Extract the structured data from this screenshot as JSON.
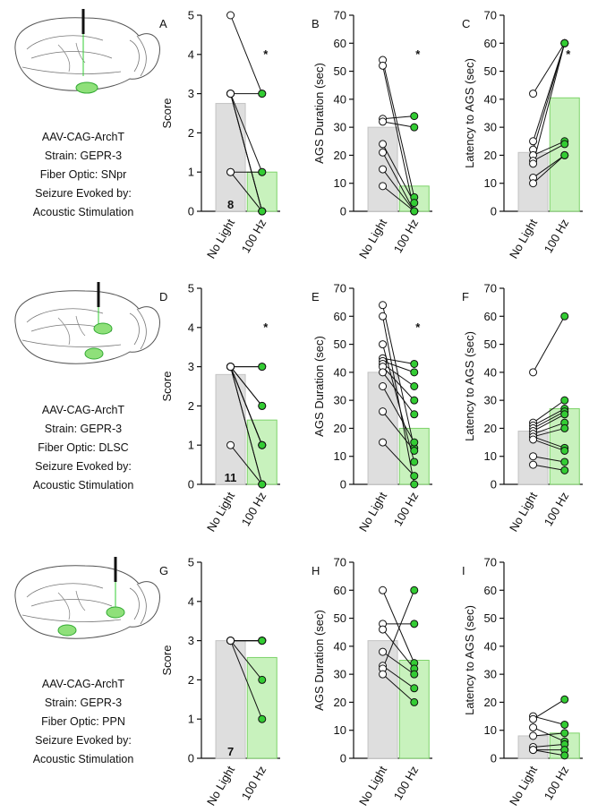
{
  "chart_data": [
    {
      "type": "paired_bar",
      "panel": "A",
      "ylabel": "Score",
      "categories": [
        "No Light",
        "100 Hz"
      ],
      "values": [
        2.75,
        1.0
      ],
      "n_label": "8",
      "annotation": "*",
      "ylim": [
        0,
        5
      ],
      "yticks": [
        0,
        1,
        2,
        3,
        4,
        5
      ],
      "colors": [
        "#dedede",
        "#c8f2bd"
      ],
      "point_colors": [
        "#ffffff",
        "#33cc33"
      ],
      "pairs": [
        [
          5,
          3
        ],
        [
          3,
          3
        ],
        [
          3,
          1
        ],
        [
          3,
          0
        ],
        [
          3,
          0
        ],
        [
          3,
          0
        ],
        [
          1,
          1
        ],
        [
          1,
          0
        ]
      ]
    },
    {
      "type": "paired_bar",
      "panel": "B",
      "ylabel": "AGS Duration (sec)",
      "categories": [
        "No Light",
        "100 Hz"
      ],
      "values": [
        30,
        9
      ],
      "annotation": "*",
      "ylim": [
        0,
        70
      ],
      "yticks": [
        0,
        10,
        20,
        30,
        40,
        50,
        60,
        70
      ],
      "colors": [
        "#dedede",
        "#c8f2bd"
      ],
      "point_colors": [
        "#ffffff",
        "#33cc33"
      ],
      "pairs": [
        [
          54,
          5
        ],
        [
          52,
          0
        ],
        [
          33,
          34
        ],
        [
          32,
          30
        ],
        [
          24,
          3
        ],
        [
          15,
          0
        ],
        [
          21,
          0
        ],
        [
          9,
          0
        ]
      ]
    },
    {
      "type": "paired_bar",
      "panel": "C",
      "ylabel": "Latency to AGS (sec)",
      "categories": [
        "No Light",
        "100 Hz"
      ],
      "values": [
        21,
        40.5
      ],
      "annotation": "*",
      "ylim": [
        0,
        70
      ],
      "yticks": [
        0,
        10,
        20,
        30,
        40,
        50,
        60,
        70
      ],
      "colors": [
        "#dedede",
        "#c8f2bd"
      ],
      "point_colors": [
        "#ffffff",
        "#33cc33"
      ],
      "pairs": [
        [
          42,
          60
        ],
        [
          25,
          60
        ],
        [
          22,
          60
        ],
        [
          20,
          25
        ],
        [
          18,
          24
        ],
        [
          17,
          60
        ],
        [
          12,
          20
        ],
        [
          10,
          20
        ]
      ]
    },
    {
      "type": "paired_bar",
      "panel": "D",
      "ylabel": "Score",
      "categories": [
        "No Light",
        "100 Hz"
      ],
      "values": [
        2.8,
        1.64
      ],
      "n_label": "11",
      "annotation": "*",
      "ylim": [
        0,
        5
      ],
      "yticks": [
        0,
        1,
        2,
        3,
        4,
        5
      ],
      "colors": [
        "#dedede",
        "#c8f2bd"
      ],
      "point_colors": [
        "#ffffff",
        "#33cc33"
      ],
      "pairs": [
        [
          3,
          3
        ],
        [
          3,
          3
        ],
        [
          3,
          2
        ],
        [
          3,
          2
        ],
        [
          3,
          1
        ],
        [
          3,
          1
        ],
        [
          3,
          1
        ],
        [
          3,
          1
        ],
        [
          3,
          0
        ],
        [
          3,
          0
        ],
        [
          1,
          0
        ]
      ]
    },
    {
      "type": "paired_bar",
      "panel": "E",
      "ylabel": "AGS Duration (sec)",
      "categories": [
        "No Light",
        "100 Hz"
      ],
      "values": [
        40,
        20
      ],
      "annotation": "*",
      "ylim": [
        0,
        70
      ],
      "yticks": [
        0,
        10,
        20,
        30,
        40,
        50,
        60,
        70
      ],
      "colors": [
        "#dedede",
        "#c8f2bd"
      ],
      "point_colors": [
        "#ffffff",
        "#33cc33"
      ],
      "pairs": [
        [
          64,
          13
        ],
        [
          60,
          0
        ],
        [
          50,
          8
        ],
        [
          45,
          43
        ],
        [
          44,
          40
        ],
        [
          43,
          35
        ],
        [
          42,
          30
        ],
        [
          40,
          25
        ],
        [
          35,
          15
        ],
        [
          26,
          12
        ],
        [
          15,
          3
        ]
      ]
    },
    {
      "type": "paired_bar",
      "panel": "F",
      "ylabel": "Latency to AGS (sec)",
      "categories": [
        "No Light",
        "100 Hz"
      ],
      "values": [
        19,
        27
      ],
      "ylim": [
        0,
        70
      ],
      "yticks": [
        0,
        10,
        20,
        30,
        40,
        50,
        60,
        70
      ],
      "colors": [
        "#dedede",
        "#c8f2bd"
      ],
      "point_colors": [
        "#ffffff",
        "#33cc33"
      ],
      "pairs": [
        [
          40,
          60
        ],
        [
          22,
          30
        ],
        [
          21,
          27
        ],
        [
          20,
          26
        ],
        [
          19,
          25
        ],
        [
          18,
          22
        ],
        [
          17,
          20
        ],
        [
          17,
          13
        ],
        [
          16,
          12
        ],
        [
          10,
          8
        ],
        [
          7,
          5
        ]
      ]
    },
    {
      "type": "paired_bar",
      "panel": "G",
      "ylabel": "Score",
      "categories": [
        "No Light",
        "100 Hz"
      ],
      "values": [
        3,
        2.57
      ],
      "n_label": "7",
      "ylim": [
        0,
        5
      ],
      "yticks": [
        0,
        1,
        2,
        3,
        4,
        5
      ],
      "colors": [
        "#dedede",
        "#c8f2bd"
      ],
      "point_colors": [
        "#ffffff",
        "#33cc33"
      ],
      "pairs": [
        [
          3,
          3
        ],
        [
          3,
          3
        ],
        [
          3,
          3
        ],
        [
          3,
          3
        ],
        [
          3,
          3
        ],
        [
          3,
          2
        ],
        [
          3,
          1
        ]
      ]
    },
    {
      "type": "paired_bar",
      "panel": "H",
      "ylabel": "AGS Duration (sec)",
      "categories": [
        "No Light",
        "100 Hz"
      ],
      "values": [
        42,
        35
      ],
      "ylim": [
        0,
        70
      ],
      "yticks": [
        0,
        10,
        20,
        30,
        40,
        50,
        60,
        70
      ],
      "colors": [
        "#dedede",
        "#c8f2bd"
      ],
      "point_colors": [
        "#ffffff",
        "#33cc33"
      ],
      "pairs": [
        [
          60,
          34
        ],
        [
          48,
          48
        ],
        [
          46,
          32
        ],
        [
          38,
          30
        ],
        [
          33,
          25
        ],
        [
          32,
          60
        ],
        [
          30,
          20
        ]
      ]
    },
    {
      "type": "paired_bar",
      "panel": "I",
      "ylabel": "Latency to AGS (sec)",
      "categories": [
        "No Light",
        "100 Hz"
      ],
      "values": [
        8,
        9
      ],
      "ylim": [
        0,
        70
      ],
      "yticks": [
        0,
        10,
        20,
        30,
        40,
        50,
        60,
        70
      ],
      "colors": [
        "#dedede",
        "#c8f2bd"
      ],
      "point_colors": [
        "#ffffff",
        "#33cc33"
      ],
      "pairs": [
        [
          15,
          12
        ],
        [
          14,
          21
        ],
        [
          11,
          6
        ],
        [
          8,
          9
        ],
        [
          4,
          5
        ],
        [
          3,
          3
        ],
        [
          3,
          1
        ]
      ]
    }
  ],
  "schematics": [
    {
      "lines": [
        "AAV-CAG-ArchT",
        "Strain: GEPR-3",
        "Fiber Optic: SNpr",
        "Seizure Evoked by:",
        "Acoustic Stimulation"
      ]
    },
    {
      "lines": [
        "AAV-CAG-ArchT",
        "Strain: GEPR-3",
        "Fiber Optic: DLSC",
        "Seizure Evoked by:",
        "Acoustic Stimulation"
      ]
    },
    {
      "lines": [
        "AAV-CAG-ArchT",
        "Strain: GEPR-3",
        "Fiber Optic: PPN",
        "Seizure Evoked by:",
        "Acoustic Stimulation"
      ]
    }
  ]
}
